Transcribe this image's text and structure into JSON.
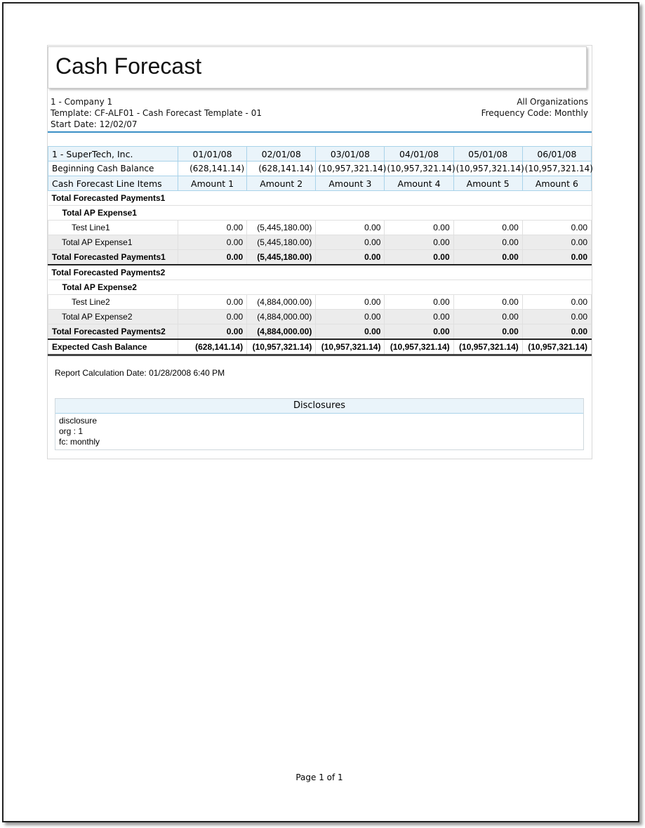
{
  "title": "Cash Forecast",
  "meta_left": [
    "1 - Company 1",
    "Template: CF-ALF01 - Cash Forecast Template - 01",
    "Start Date: 12/02/07"
  ],
  "meta_right": [
    "All Organizations",
    "Frequency Code: Monthly"
  ],
  "table": {
    "company": "1 - SuperTech, Inc.",
    "dates": [
      "01/01/08",
      "02/01/08",
      "03/01/08",
      "04/01/08",
      "05/01/08",
      "06/01/08"
    ],
    "beginning_label": "Beginning Cash Balance",
    "beginning": [
      "(628,141.14)",
      "(628,141.14)",
      "(10,957,321.14)",
      "(10,957,321.14)",
      "(10,957,321.14)",
      "(10,957,321.14)"
    ],
    "items_label": "Cash Forecast Line Items",
    "amounts": [
      "Amount 1",
      "Amount 2",
      "Amount 3",
      "Amount 4",
      "Amount 5",
      "Amount 6"
    ],
    "rows": [
      {
        "type": "section",
        "label": "Total Forecasted Payments1"
      },
      {
        "type": "section l1",
        "label": "Total AP Expense1"
      },
      {
        "type": "line",
        "label": "Test Line1",
        "values": [
          "0.00",
          "(5,445,180.00)",
          "0.00",
          "0.00",
          "0.00",
          "0.00"
        ]
      },
      {
        "type": "sub",
        "label": "Total AP Expense1",
        "values": [
          "0.00",
          "(5,445,180.00)",
          "0.00",
          "0.00",
          "0.00",
          "0.00"
        ]
      },
      {
        "type": "total",
        "label": "Total Forecasted Payments1",
        "values": [
          "0.00",
          "(5,445,180.00)",
          "0.00",
          "0.00",
          "0.00",
          "0.00"
        ]
      },
      {
        "type": "section",
        "label": "Total Forecasted Payments2"
      },
      {
        "type": "section l1",
        "label": "Total AP Expense2"
      },
      {
        "type": "line",
        "label": "Test Line2",
        "values": [
          "0.00",
          "(4,884,000.00)",
          "0.00",
          "0.00",
          "0.00",
          "0.00"
        ]
      },
      {
        "type": "sub",
        "label": "Total AP Expense2",
        "values": [
          "0.00",
          "(4,884,000.00)",
          "0.00",
          "0.00",
          "0.00",
          "0.00"
        ]
      },
      {
        "type": "total",
        "label": "Total Forecasted Payments2",
        "values": [
          "0.00",
          "(4,884,000.00)",
          "0.00",
          "0.00",
          "0.00",
          "0.00"
        ]
      },
      {
        "type": "grand",
        "label": "Expected Cash Balance",
        "values": [
          "(628,141.14)",
          "(10,957,321.14)",
          "(10,957,321.14)",
          "(10,957,321.14)",
          "(10,957,321.14)",
          "(10,957,321.14)"
        ]
      }
    ]
  },
  "calc_date": "Report Calculation Date: 01/28/2008 6:40 PM",
  "disclosures": {
    "title": "Disclosures",
    "lines": [
      "disclosure",
      "org : 1",
      "fc: monthly"
    ]
  },
  "footer": "Page 1 of 1"
}
